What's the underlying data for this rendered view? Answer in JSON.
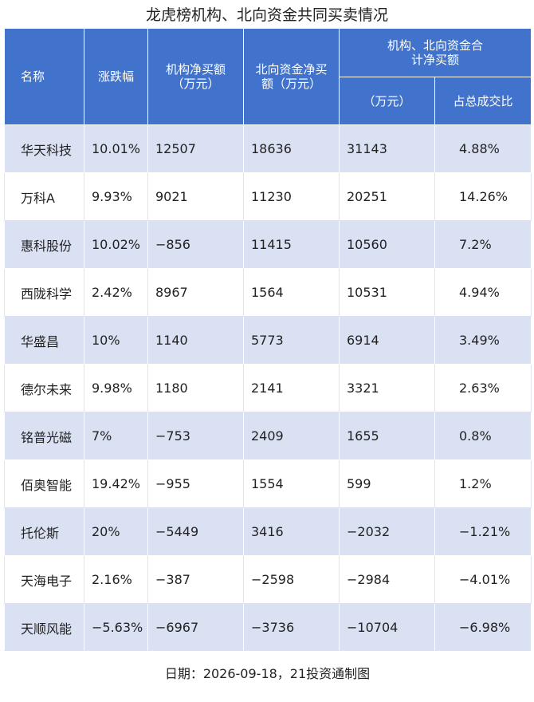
{
  "title": "龙虎榜机构、北向资金共同买卖情况",
  "headers": {
    "name": "名称",
    "change": "涨跌幅",
    "inst": "机构净买额（万元）",
    "north": "北向资金净买额（万元）",
    "combined": "机构、北向资金合计净买额",
    "combined_amount": "（万元）",
    "combined_ratio": "占总成交比"
  },
  "rows": [
    {
      "name": "华天科技",
      "change": "10.01%",
      "inst": "12507",
      "north": "18636",
      "total": "31143",
      "ratio": "4.88%"
    },
    {
      "name": "万科A",
      "change": "9.93%",
      "inst": "9021",
      "north": "11230",
      "total": "20251",
      "ratio": "14.26%"
    },
    {
      "name": "惠科股份",
      "change": "10.02%",
      "inst": "−856",
      "north": "11415",
      "total": "10560",
      "ratio": "7.2%"
    },
    {
      "name": "西陇科学",
      "change": "2.42%",
      "inst": "8967",
      "north": "1564",
      "total": "10531",
      "ratio": "4.94%"
    },
    {
      "name": "华盛昌",
      "change": "10%",
      "inst": "1140",
      "north": "5773",
      "total": "6914",
      "ratio": "3.49%"
    },
    {
      "name": "德尔未来",
      "change": "9.98%",
      "inst": "1180",
      "north": "2141",
      "total": "3321",
      "ratio": "2.63%"
    },
    {
      "name": "铭普光磁",
      "change": "7%",
      "inst": "−753",
      "north": "2409",
      "total": "1655",
      "ratio": "0.8%"
    },
    {
      "name": "佰奥智能",
      "change": "19.42%",
      "inst": "−955",
      "north": "1554",
      "total": "599",
      "ratio": "1.2%"
    },
    {
      "name": "托伦斯",
      "change": "20%",
      "inst": "−5449",
      "north": "3416",
      "total": "−2032",
      "ratio": "−1.21%"
    },
    {
      "name": "天海电子",
      "change": "2.16%",
      "inst": "−387",
      "north": "−2598",
      "total": "−2984",
      "ratio": "−4.01%"
    },
    {
      "name": "天顺风能",
      "change": "−5.63%",
      "inst": "−6967",
      "north": "−3736",
      "total": "−10704",
      "ratio": "−6.98%"
    }
  ],
  "footer": "日期：2026-09-18，21投资通制图",
  "colors": {
    "header_bg": "#4273cc",
    "stripe": "#dae1f3"
  }
}
